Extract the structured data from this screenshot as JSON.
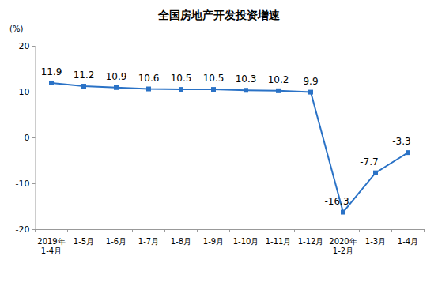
{
  "chart_data": {
    "type": "line",
    "title": "全国房地产开发投资增速",
    "y_label": "(%)",
    "categories": [
      "2019年\n1-4月",
      "1-5月",
      "1-6月",
      "1-7月",
      "1-8月",
      "1-9月",
      "1-10月",
      "1-11月",
      "1-12月",
      "2020年\n1-2月",
      "1-3月",
      "1-4月"
    ],
    "values": [
      11.9,
      11.2,
      10.9,
      10.6,
      10.5,
      10.5,
      10.3,
      10.2,
      9.9,
      -16.3,
      -7.7,
      -3.3
    ],
    "color": "#2a72c6",
    "marker": "square",
    "line_style": "solid",
    "ylim": [
      -20,
      20
    ],
    "yticks": [
      -20,
      -10,
      0,
      10,
      20
    ],
    "grid": false,
    "data_labels": true
  }
}
